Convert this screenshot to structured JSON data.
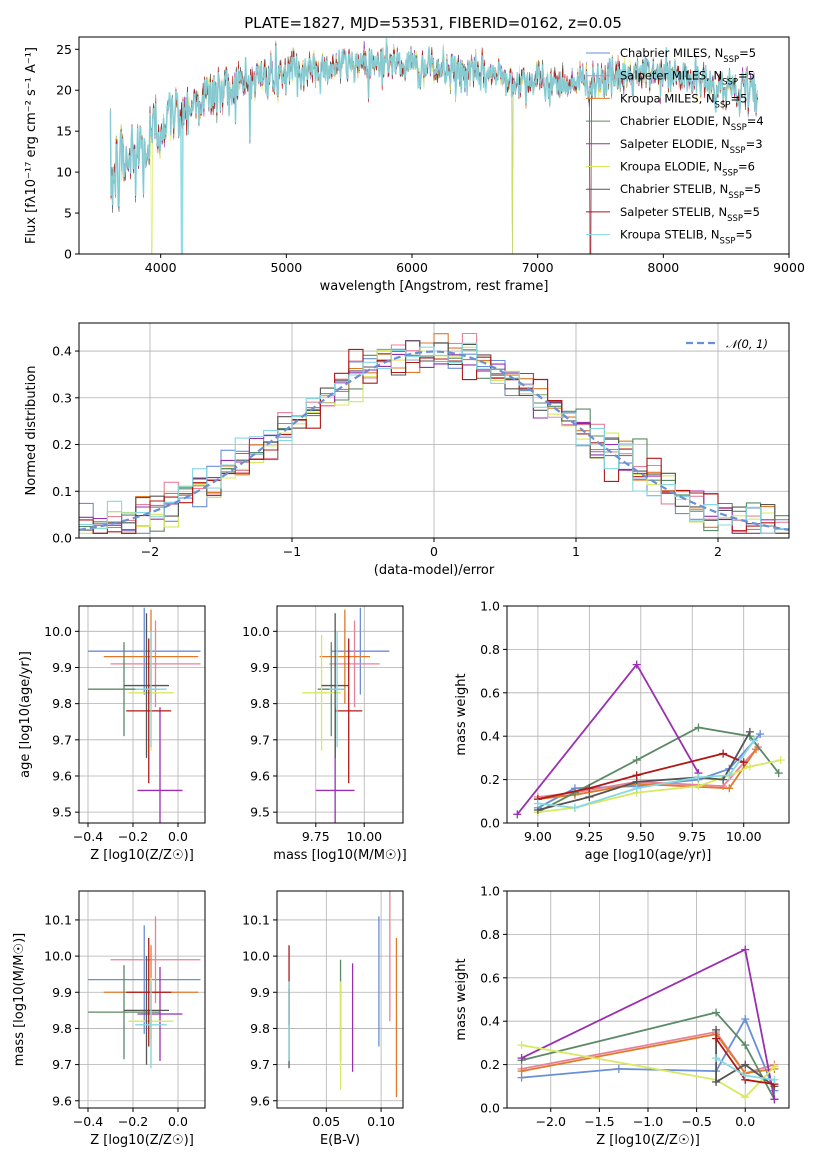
{
  "figure": {
    "title": "PLATE=1827, MJD=53531, FIBERID=0162, z=0.05"
  },
  "colors": {
    "Chabrier MILES": "#6a8fd6",
    "Salpeter MILES": "#e8829a",
    "Kroupa MILES": "#e07a2a",
    "Chabrier ELODIE": "#5c8a66",
    "Salpeter ELODIE": "#9a2fb0",
    "Kroupa ELODIE": "#d8e860",
    "Chabrier STELIB": "#555555",
    "Salpeter STELIB": "#b01818",
    "Kroupa STELIB": "#86d8e0"
  },
  "chart_data": [
    {
      "id": "spectrum",
      "type": "line",
      "title": "PLATE=1827, MJD=53531, FIBERID=0162, z=0.05",
      "xlabel": "wavelength [Angstrom, rest frame]",
      "ylabel": "Flux [fλ10⁻¹⁷ erg cm⁻² s⁻¹ A⁻¹]",
      "xlim": [
        3350,
        9000
      ],
      "ylim": [
        0,
        26.5
      ],
      "xticks": [
        4000,
        5000,
        6000,
        7000,
        8000,
        9000
      ],
      "yticks": [
        0,
        5,
        10,
        15,
        20,
        25
      ],
      "x_range_data": [
        3600,
        8750
      ],
      "continuum": {
        "x": [
          3600,
          3700,
          3800,
          3900,
          4000,
          4200,
          4400,
          4600,
          4800,
          5000,
          5200,
          5400,
          5600,
          5800,
          6000,
          6200,
          6400,
          6600,
          6800,
          7000,
          7200,
          7400,
          7600,
          7800,
          8000,
          8200,
          8400,
          8600,
          8750
        ],
        "y": [
          9,
          11,
          12,
          13,
          16,
          18,
          19.5,
          20.5,
          21.5,
          22,
          22.5,
          23,
          23.5,
          23.5,
          23,
          22.5,
          22,
          22,
          21.5,
          21,
          21,
          21,
          21.5,
          22,
          22,
          21.5,
          20.5,
          20,
          19.5
        ]
      },
      "legend": [
        "Chabrier MILES, NSSP=5",
        "Salpeter MILES, NSSP=5",
        "Kroupa MILES, NSSP=5",
        "Chabrier ELODIE, NSSP=4",
        "Salpeter ELODIE, NSSP=3",
        "Kroupa ELODIE, NSSP=6",
        "Chabrier STELIB, NSSP=5",
        "Salpeter STELIB, NSSP=5",
        "Kroupa STELIB, NSSP=5"
      ],
      "legend_position": "top-right"
    },
    {
      "id": "residuals",
      "type": "histogram",
      "xlabel": "(data-model)/error",
      "ylabel": "Normed distribution",
      "xlim": [
        -2.5,
        2.5
      ],
      "ylim": [
        0,
        0.46
      ],
      "xticks": [
        -2,
        -1,
        0,
        1,
        2
      ],
      "yticks": [
        0.0,
        0.1,
        0.2,
        0.3,
        0.4
      ],
      "grid": true,
      "bin_width": 0.1,
      "reference_curve": "N(0,1)",
      "legend": [
        "𝒩(0, 1)"
      ],
      "legend_position": "top-right"
    },
    {
      "id": "age-vs-Z",
      "type": "errorbar",
      "xlabel": "Z [log10(Z/Z☉)]",
      "ylabel": "age [log10(age/yr)]",
      "xlim": [
        -0.44,
        0.12
      ],
      "ylim": [
        9.47,
        10.07
      ],
      "xticks": [
        -0.4,
        -0.2,
        0.0
      ],
      "yticks": [
        9.5,
        9.6,
        9.7,
        9.8,
        9.9,
        10.0
      ],
      "grid": true,
      "points": [
        {
          "model": "Chabrier MILES",
          "x": -0.15,
          "xerr": 0.25,
          "y": 9.945,
          "yerr": 0.12
        },
        {
          "model": "Salpeter MILES",
          "x": -0.1,
          "xerr": 0.2,
          "y": 9.91,
          "yerr": 0.12
        },
        {
          "model": "Kroupa MILES",
          "x": -0.12,
          "xerr": 0.21,
          "y": 9.93,
          "yerr": 0.13
        },
        {
          "model": "Chabrier ELODIE",
          "x": -0.24,
          "xerr": 0.16,
          "y": 9.84,
          "yerr": 0.13
        },
        {
          "model": "Salpeter ELODIE",
          "x": -0.08,
          "xerr": 0.1,
          "y": 9.56,
          "yerr": 0.23
        },
        {
          "model": "Kroupa ELODIE",
          "x": -0.12,
          "xerr": 0.1,
          "y": 9.83,
          "yerr": 0.16
        },
        {
          "model": "Chabrier STELIB",
          "x": -0.14,
          "xerr": 0.1,
          "y": 9.85,
          "yerr": 0.2
        },
        {
          "model": "Salpeter STELIB",
          "x": -0.13,
          "xerr": 0.1,
          "y": 9.78,
          "yerr": 0.2
        },
        {
          "model": "Kroupa STELIB",
          "x": -0.12,
          "xerr": 0.07,
          "y": 9.84,
          "yerr": 0.16
        }
      ]
    },
    {
      "id": "age-vs-mass",
      "type": "errorbar",
      "xlabel": "mass [log10(M/M☉)]",
      "ylabel": "",
      "xlim": [
        9.55,
        10.2
      ],
      "ylim": [
        9.47,
        10.07
      ],
      "xticks": [
        9.75,
        10.0
      ],
      "yticks": [
        9.5,
        9.6,
        9.7,
        9.8,
        9.9,
        10.0
      ],
      "grid": true,
      "points": [
        {
          "model": "Chabrier MILES",
          "x": 9.98,
          "xerr": 0.15,
          "y": 9.945,
          "yerr": 0.12
        },
        {
          "model": "Salpeter MILES",
          "x": 9.95,
          "xerr": 0.13,
          "y": 9.91,
          "yerr": 0.12
        },
        {
          "model": "Kroupa MILES",
          "x": 9.9,
          "xerr": 0.13,
          "y": 9.93,
          "yerr": 0.13
        },
        {
          "model": "Chabrier ELODIE",
          "x": 9.83,
          "xerr": 0.07,
          "y": 9.84,
          "yerr": 0.13
        },
        {
          "model": "Salpeter ELODIE",
          "x": 9.85,
          "xerr": 0.1,
          "y": 9.56,
          "yerr": 0.23
        },
        {
          "model": "Kroupa ELODIE",
          "x": 9.78,
          "xerr": 0.1,
          "y": 9.83,
          "yerr": 0.16
        },
        {
          "model": "Chabrier STELIB",
          "x": 9.85,
          "xerr": 0.07,
          "y": 9.85,
          "yerr": 0.2
        },
        {
          "model": "Salpeter STELIB",
          "x": 9.92,
          "xerr": 0.07,
          "y": 9.78,
          "yerr": 0.2
        },
        {
          "model": "Kroupa STELIB",
          "x": 9.86,
          "xerr": 0.04,
          "y": 9.84,
          "yerr": 0.16
        }
      ]
    },
    {
      "id": "weight-vs-age",
      "type": "line",
      "xlabel": "age [log10(age/yr)]",
      "ylabel": "mass weight",
      "xlim": [
        8.85,
        10.22
      ],
      "ylim": [
        0,
        1.0
      ],
      "xticks": [
        9.0,
        9.25,
        9.5,
        9.75,
        10.0
      ],
      "yticks": [
        0.0,
        0.2,
        0.4,
        0.6,
        0.8,
        1.0
      ],
      "grid": true,
      "series": [
        {
          "model": "Chabrier MILES",
          "x": [
            9.0,
            9.18,
            9.48,
            9.78,
            9.93,
            10.08
          ],
          "y": [
            0.07,
            0.16,
            0.17,
            0.2,
            0.25,
            0.41
          ]
        },
        {
          "model": "Salpeter MILES",
          "x": [
            9.0,
            9.18,
            9.48,
            9.9,
            10.07
          ],
          "y": [
            0.12,
            0.14,
            0.19,
            0.17,
            0.35
          ]
        },
        {
          "model": "Kroupa MILES",
          "x": [
            9.0,
            9.18,
            9.48,
            9.93,
            10.06
          ],
          "y": [
            0.11,
            0.13,
            0.18,
            0.16,
            0.34
          ]
        },
        {
          "model": "Chabrier ELODIE",
          "x": [
            9.0,
            9.18,
            9.48,
            9.78,
            10.03,
            10.17
          ],
          "y": [
            0.05,
            0.14,
            0.29,
            0.44,
            0.4,
            0.23
          ]
        },
        {
          "model": "Salpeter ELODIE",
          "x": [
            8.9,
            9.48,
            9.78
          ],
          "y": [
            0.04,
            0.73,
            0.23
          ]
        },
        {
          "model": "Kroupa ELODIE",
          "x": [
            9.0,
            9.18,
            9.48,
            9.78,
            9.93,
            10.03,
            10.18
          ],
          "y": [
            0.05,
            0.07,
            0.14,
            0.17,
            0.22,
            0.26,
            0.29
          ]
        },
        {
          "model": "Chabrier STELIB",
          "x": [
            9.0,
            9.25,
            9.48,
            9.78,
            9.9,
            10.03
          ],
          "y": [
            0.06,
            0.12,
            0.19,
            0.21,
            0.2,
            0.42
          ]
        },
        {
          "model": "Salpeter STELIB",
          "x": [
            9.0,
            9.25,
            9.48,
            9.9,
            10.0
          ],
          "y": [
            0.11,
            0.16,
            0.22,
            0.32,
            0.28
          ]
        },
        {
          "model": "Kroupa STELIB",
          "x": [
            9.0,
            9.18,
            9.48,
            9.78,
            9.93,
            10.05
          ],
          "y": [
            0.09,
            0.07,
            0.16,
            0.21,
            0.22,
            0.38
          ]
        }
      ]
    },
    {
      "id": "mass-vs-Z",
      "type": "errorbar",
      "xlabel": "Z [log10(Z/Z☉)]",
      "ylabel": "mass [log10(M/M☉)]",
      "xlim": [
        -0.44,
        0.12
      ],
      "ylim": [
        9.58,
        10.18
      ],
      "xticks": [
        -0.4,
        -0.2,
        0.0
      ],
      "yticks": [
        9.6,
        9.7,
        9.8,
        9.9,
        10.0,
        10.1
      ],
      "grid": true,
      "points": [
        {
          "model": "Chabrier MILES",
          "x": -0.15,
          "xerr": 0.25,
          "y": 9.935,
          "yerr": 0.15
        },
        {
          "model": "Salpeter MILES",
          "x": -0.1,
          "xerr": 0.2,
          "y": 9.99,
          "yerr": 0.12
        },
        {
          "model": "Kroupa MILES",
          "x": -0.12,
          "xerr": 0.21,
          "y": 9.9,
          "yerr": 0.13
        },
        {
          "model": "Chabrier ELODIE",
          "x": -0.24,
          "xerr": 0.16,
          "y": 9.845,
          "yerr": 0.13
        },
        {
          "model": "Salpeter ELODIE",
          "x": -0.08,
          "xerr": 0.1,
          "y": 9.84,
          "yerr": 0.13
        },
        {
          "model": "Kroupa ELODIE",
          "x": -0.12,
          "xerr": 0.1,
          "y": 9.82,
          "yerr": 0.12
        },
        {
          "model": "Chabrier STELIB",
          "x": -0.14,
          "xerr": 0.1,
          "y": 9.85,
          "yerr": 0.15
        },
        {
          "model": "Salpeter STELIB",
          "x": -0.13,
          "xerr": 0.1,
          "y": 9.9,
          "yerr": 0.15
        },
        {
          "model": "Kroupa STELIB",
          "x": -0.12,
          "xerr": 0.07,
          "y": 9.81,
          "yerr": 0.12
        }
      ]
    },
    {
      "id": "mass-vs-EBV",
      "type": "errorbar",
      "xlabel": "E(B-V)",
      "ylabel": "",
      "xlim": [
        0.005,
        0.12
      ],
      "ylim": [
        9.58,
        10.18
      ],
      "xticks": [
        0.05,
        0.1
      ],
      "yticks": [
        9.6,
        9.7,
        9.8,
        9.9,
        10.0,
        10.1
      ],
      "grid": true,
      "points": [
        {
          "model": "Chabrier MILES",
          "x": 0.098,
          "y": 9.93,
          "yerr": 0.18
        },
        {
          "model": "Salpeter MILES",
          "x": 0.108,
          "y": 10.0,
          "yerr": 0.18
        },
        {
          "model": "Kroupa MILES",
          "x": 0.114,
          "y": 9.83,
          "yerr": 0.22
        },
        {
          "model": "Chabrier ELODIE",
          "x": 0.063,
          "y": 9.85,
          "yerr": 0.14
        },
        {
          "model": "Salpeter ELODIE",
          "x": 0.074,
          "y": 9.83,
          "yerr": 0.15
        },
        {
          "model": "Kroupa ELODIE",
          "x": 0.063,
          "y": 9.78,
          "yerr": 0.15
        },
        {
          "model": "Chabrier STELIB",
          "x": 0.016,
          "y": 9.8,
          "yerr": 0.11
        },
        {
          "model": "Salpeter STELIB",
          "x": 0.016,
          "y": 9.92,
          "yerr": 0.11
        },
        {
          "model": "Kroupa STELIB",
          "x": 0.016,
          "y": 9.82,
          "yerr": 0.11
        }
      ]
    },
    {
      "id": "weight-vs-Z",
      "type": "line",
      "xlabel": "Z [log10(Z/Z☉)]",
      "ylabel": "mass weight",
      "xlim": [
        -2.45,
        0.45
      ],
      "ylim": [
        0,
        1.0
      ],
      "xticks": [
        -2.0,
        -1.5,
        -1.0,
        -0.5,
        0.0
      ],
      "yticks": [
        0.0,
        0.2,
        0.4,
        0.6,
        0.8,
        1.0
      ],
      "grid": true,
      "series": [
        {
          "model": "Chabrier MILES",
          "x": [
            -2.3,
            -1.3,
            -0.3,
            0.0,
            0.3
          ],
          "y": [
            0.14,
            0.18,
            0.17,
            0.41,
            0.08
          ]
        },
        {
          "model": "Salpeter MILES",
          "x": [
            -2.3,
            -0.3,
            0.0,
            0.3
          ],
          "y": [
            0.18,
            0.35,
            0.16,
            0.2
          ]
        },
        {
          "model": "Kroupa MILES",
          "x": [
            -2.3,
            -0.3,
            0.0,
            0.3
          ],
          "y": [
            0.17,
            0.34,
            0.16,
            0.18
          ]
        },
        {
          "model": "Chabrier ELODIE",
          "x": [
            -2.3,
            -0.3,
            0.0,
            0.3
          ],
          "y": [
            0.22,
            0.44,
            0.29,
            0.04
          ]
        },
        {
          "model": "Salpeter ELODIE",
          "x": [
            -2.3,
            0.0,
            0.3
          ],
          "y": [
            0.23,
            0.73,
            0.04
          ]
        },
        {
          "model": "Kroupa ELODIE",
          "x": [
            -2.3,
            -0.3,
            0.0,
            0.3
          ],
          "y": [
            0.29,
            0.13,
            0.05,
            0.19
          ]
        },
        {
          "model": "Chabrier STELIB",
          "x": [
            -0.3,
            -0.3,
            0.0,
            0.3
          ],
          "y": [
            0.36,
            0.12,
            0.2,
            0.1
          ]
        },
        {
          "model": "Salpeter STELIB",
          "x": [
            -0.3,
            0.0,
            0.3
          ],
          "y": [
            0.32,
            0.13,
            0.11
          ]
        },
        {
          "model": "Kroupa STELIB",
          "x": [
            -0.3,
            0.0,
            0.3
          ],
          "y": [
            0.23,
            0.15,
            0.13
          ]
        }
      ]
    }
  ]
}
